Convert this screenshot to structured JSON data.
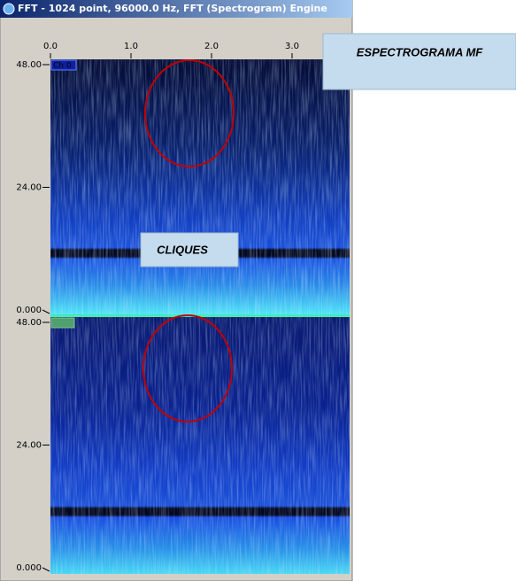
{
  "window": {
    "title": "FFT - 1024 point, 96000.0 Hz, FFT (Spectrogram) Engine"
  },
  "x_axis": {
    "labels": [
      "0.0",
      "1.0",
      "2.0",
      "3.0"
    ]
  },
  "panels": [
    {
      "channel": "Ch 0",
      "y_labels": [
        "48.00",
        "24.00",
        "0.000"
      ]
    },
    {
      "y_labels": [
        "48.00",
        "24.00",
        "0.000"
      ]
    }
  ],
  "annotations": [
    "ESPECTROGRAMA MF",
    "CLIQUES"
  ]
}
